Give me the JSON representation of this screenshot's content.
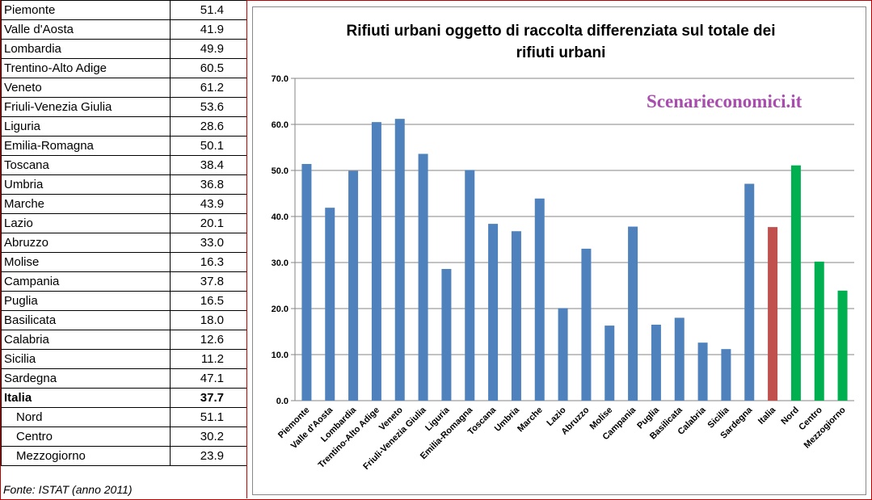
{
  "table": {
    "rows": [
      {
        "label": "Piemonte",
        "value": "51.4"
      },
      {
        "label": "Valle d'Aosta",
        "value": "41.9"
      },
      {
        "label": "Lombardia",
        "value": "49.9"
      },
      {
        "label": "Trentino-Alto Adige",
        "value": "60.5"
      },
      {
        "label": "Veneto",
        "value": "61.2"
      },
      {
        "label": "Friuli-Venezia Giulia",
        "value": "53.6"
      },
      {
        "label": "Liguria",
        "value": "28.6"
      },
      {
        "label": "Emilia-Romagna",
        "value": "50.1"
      },
      {
        "label": "Toscana",
        "value": "38.4"
      },
      {
        "label": "Umbria",
        "value": "36.8"
      },
      {
        "label": "Marche",
        "value": "43.9"
      },
      {
        "label": "Lazio",
        "value": "20.1"
      },
      {
        "label": "Abruzzo",
        "value": "33.0"
      },
      {
        "label": "Molise",
        "value": "16.3"
      },
      {
        "label": "Campania",
        "value": "37.8"
      },
      {
        "label": "Puglia",
        "value": "16.5"
      },
      {
        "label": "Basilicata",
        "value": "18.0"
      },
      {
        "label": "Calabria",
        "value": "12.6"
      },
      {
        "label": "Sicilia",
        "value": "11.2"
      },
      {
        "label": "Sardegna",
        "value": "47.1"
      },
      {
        "label": "Italia",
        "value": "37.7"
      },
      {
        "label": "Nord",
        "value": "51.1"
      },
      {
        "label": "Centro",
        "value": "30.2"
      },
      {
        "label": "Mezzogiorno",
        "value": "23.9"
      }
    ],
    "source": "Fonte: ISTAT (anno 2011)"
  },
  "watermark": "Scenarieconomici.it",
  "chart_data": {
    "type": "bar",
    "title": "Rifiuti urbani oggetto di raccolta differenziata sul totale dei rifiuti urbani",
    "title_lines": [
      "Rifiuti urbani oggetto di raccolta differenziata sul totale dei",
      "rifiuti urbani"
    ],
    "categories": [
      "Piemonte",
      "Valle d'Aosta",
      "Lombardia",
      "Trentino-Alto Adige",
      "Veneto",
      "Friuli-Venezia Giulia",
      "Liguria",
      "Emilia-Romagna",
      "Toscana",
      "Umbria",
      "Marche",
      "Lazio",
      "Abruzzo",
      "Molise",
      "Campania",
      "Puglia",
      "Basilicata",
      "Calabria",
      "Sicilia",
      "Sardegna",
      "Italia",
      "Nord",
      "Centro",
      "Mezzogiorno"
    ],
    "values": [
      51.4,
      41.9,
      49.9,
      60.5,
      61.2,
      53.6,
      28.6,
      50.1,
      38.4,
      36.8,
      43.9,
      20.1,
      33.0,
      16.3,
      37.8,
      16.5,
      18.0,
      12.6,
      11.2,
      47.1,
      37.7,
      51.1,
      30.2,
      23.9
    ],
    "bar_colors": [
      "#4f81bd",
      "#4f81bd",
      "#4f81bd",
      "#4f81bd",
      "#4f81bd",
      "#4f81bd",
      "#4f81bd",
      "#4f81bd",
      "#4f81bd",
      "#4f81bd",
      "#4f81bd",
      "#4f81bd",
      "#4f81bd",
      "#4f81bd",
      "#4f81bd",
      "#4f81bd",
      "#4f81bd",
      "#4f81bd",
      "#4f81bd",
      "#4f81bd",
      "#c0504d",
      "#00b050",
      "#00b050",
      "#00b050"
    ],
    "ylim": [
      0,
      70
    ],
    "yticks": [
      "0.0",
      "10.0",
      "20.0",
      "30.0",
      "40.0",
      "50.0",
      "60.0",
      "70.0"
    ],
    "grid": true,
    "legend": "none",
    "gridline_color": "#868686"
  }
}
